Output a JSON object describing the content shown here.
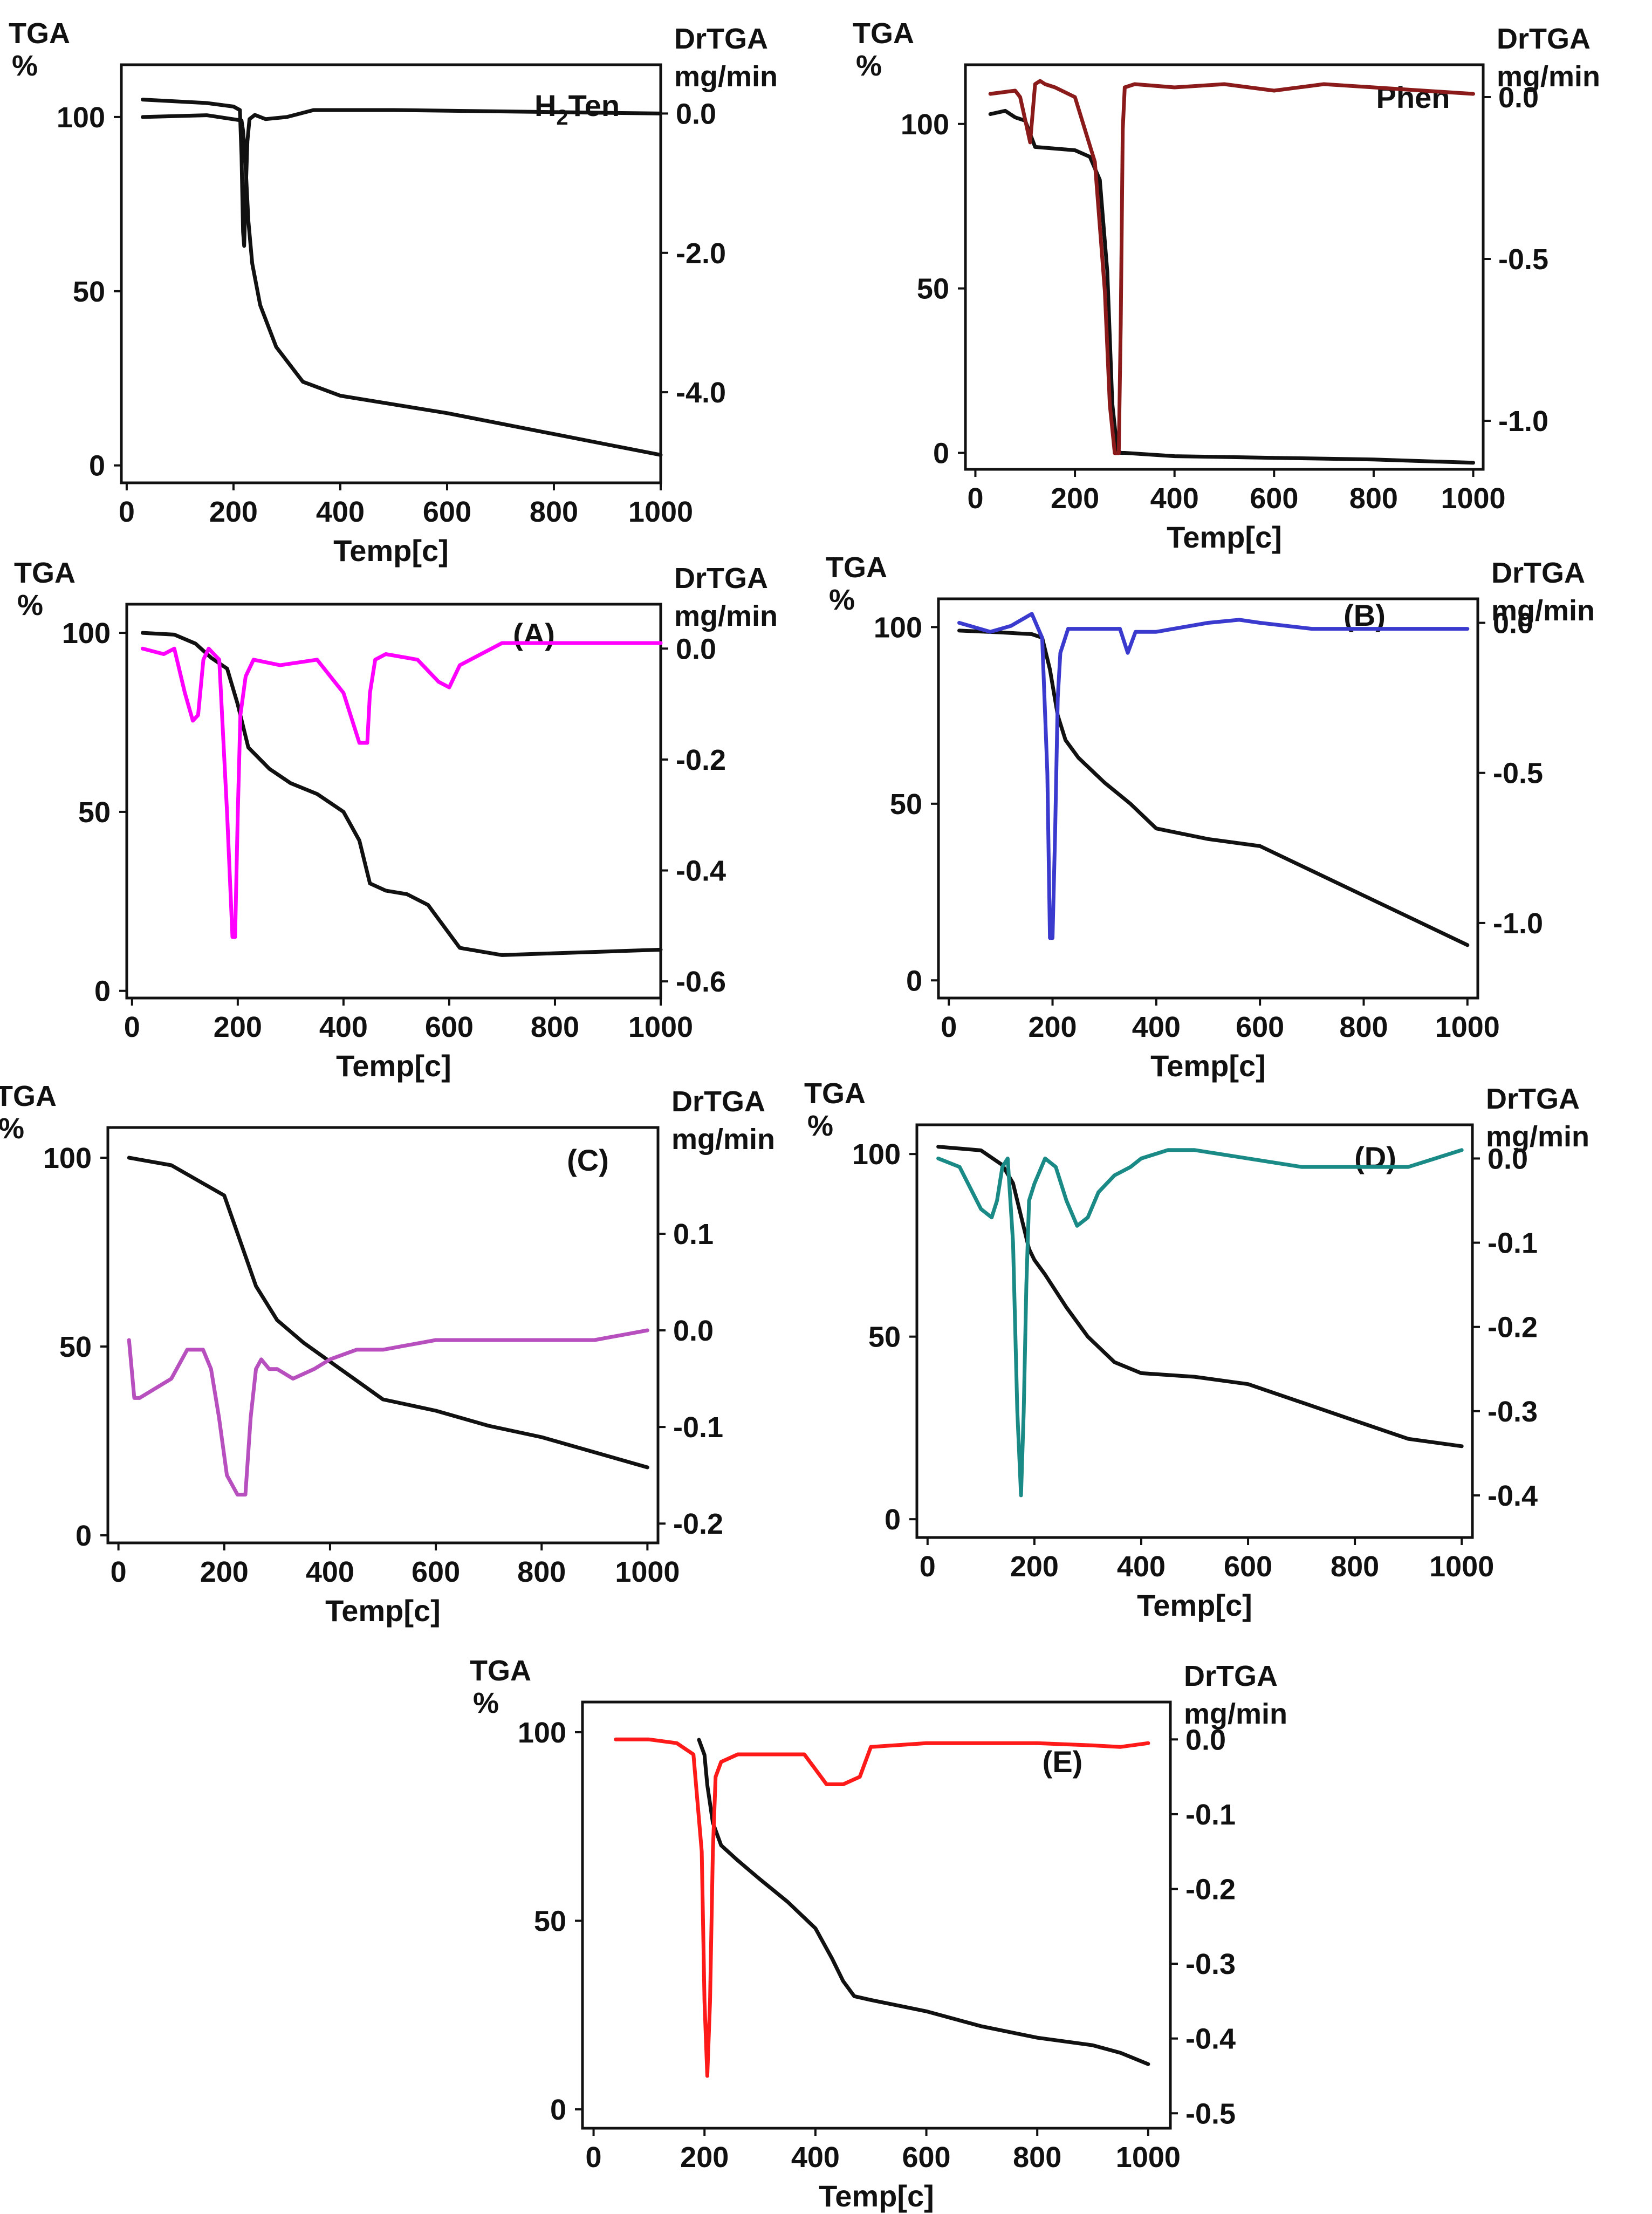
{
  "chart_data": [
    {
      "id": "h2ten",
      "type": "line",
      "panel_label": "H",
      "panel_label_sub": "2",
      "panel_label_tail": "Ten",
      "xlabel": "Temp[c]",
      "ylabel": [
        "TGA",
        "%"
      ],
      "y2label": [
        "DrTGA",
        "mg/min"
      ],
      "xlim": [
        -10,
        1000
      ],
      "ylim": [
        -5,
        115
      ],
      "y2lim": [
        -5.3,
        0.7
      ],
      "x_ticks": [
        "0",
        "200",
        "400",
        "600",
        "800",
        "1000"
      ],
      "x_tick_values": [
        0,
        200,
        400,
        600,
        800,
        1000
      ],
      "y_ticks": [
        "0",
        "50",
        "100"
      ],
      "y_tick_values": [
        0,
        50,
        100
      ],
      "y2_ticks": [
        "0.0",
        "-2.0",
        "-4.0"
      ],
      "y2_tick_values": [
        0,
        -2,
        -4
      ],
      "series": [
        {
          "name": "TGA",
          "axis": "left",
          "color": "#111111",
          "x": [
            30,
            150,
            215,
            218,
            222,
            228,
            235,
            250,
            280,
            330,
            400,
            500,
            600,
            700,
            800,
            900,
            1000
          ],
          "y": [
            100,
            100.5,
            99,
            96,
            88,
            70,
            58,
            46,
            34,
            24,
            20,
            17.5,
            15,
            12,
            9,
            6,
            3
          ]
        },
        {
          "name": "DrTGA",
          "axis": "right",
          "color": "#111111",
          "x": [
            30,
            150,
            200,
            212,
            215,
            218,
            220,
            223,
            226,
            230,
            240,
            260,
            300,
            350,
            500,
            700,
            1000
          ],
          "y": [
            0.2,
            0.15,
            0.1,
            0.05,
            -0.6,
            -1.7,
            -1.9,
            -1.1,
            -0.4,
            -0.08,
            -0.02,
            -0.08,
            -0.05,
            0.05,
            0.05,
            0.03,
            0.0
          ]
        }
      ]
    },
    {
      "id": "phen",
      "type": "line",
      "panel_label": "Phen",
      "xlabel": "Temp[c]",
      "ylabel": [
        "TGA",
        "%"
      ],
      "y2label": [
        "DrTGA",
        "mg/min"
      ],
      "xlim": [
        -20,
        1020
      ],
      "ylim": [
        -5,
        118
      ],
      "y2lim": [
        -1.15,
        0.1
      ],
      "x_ticks": [
        "0",
        "200",
        "400",
        "600",
        "800",
        "1000"
      ],
      "x_tick_values": [
        0,
        200,
        400,
        600,
        800,
        1000
      ],
      "y_ticks": [
        "0",
        "50",
        "100"
      ],
      "y_tick_values": [
        0,
        50,
        100
      ],
      "y2_ticks": [
        "0.0",
        "-0.5",
        "-1.0"
      ],
      "y2_tick_values": [
        0,
        -0.5,
        -1.0
      ],
      "series": [
        {
          "name": "TGA",
          "axis": "left",
          "color": "#111111",
          "x": [
            30,
            60,
            80,
            100,
            120,
            200,
            230,
            250,
            265,
            275,
            285,
            292,
            300,
            400,
            600,
            800,
            1000
          ],
          "y": [
            103,
            104,
            102,
            101,
            93,
            92,
            90,
            83,
            55,
            15,
            1,
            0,
            0,
            -1,
            -1.5,
            -2,
            -3
          ]
        },
        {
          "name": "DrTGA",
          "axis": "right",
          "color": "#8b1a1a",
          "x": [
            30,
            80,
            90,
            100,
            110,
            115,
            120,
            130,
            140,
            160,
            200,
            240,
            260,
            270,
            280,
            288,
            292,
            296,
            300,
            320,
            400,
            500,
            600,
            700,
            800,
            900,
            1000
          ],
          "y": [
            0.01,
            0.02,
            0.0,
            -0.07,
            -0.14,
            -0.05,
            0.04,
            0.05,
            0.04,
            0.03,
            0.0,
            -0.2,
            -0.6,
            -0.95,
            -1.1,
            -1.1,
            -0.7,
            -0.1,
            0.03,
            0.04,
            0.03,
            0.04,
            0.02,
            0.04,
            0.03,
            0.02,
            0.01
          ]
        }
      ]
    },
    {
      "id": "A",
      "type": "line",
      "panel_label": "(A)",
      "xlabel": "Temp[c]",
      "ylabel": [
        "TGA",
        "%"
      ],
      "y2label": [
        "DrTGA",
        "mg/min"
      ],
      "xlim": [
        -10,
        1000
      ],
      "ylim": [
        -2,
        108
      ],
      "y2lim": [
        -0.63,
        0.08
      ],
      "x_ticks": [
        "0",
        "200",
        "400",
        "600",
        "800",
        "1000"
      ],
      "x_tick_values": [
        0,
        200,
        400,
        600,
        800,
        1000
      ],
      "y_ticks": [
        "0",
        "50",
        "100"
      ],
      "y_tick_values": [
        0,
        50,
        100
      ],
      "y2_ticks": [
        "0.0",
        "-0.2",
        "-0.4",
        "-0.6"
      ],
      "y2_tick_values": [
        0,
        -0.2,
        -0.4,
        -0.6
      ],
      "series": [
        {
          "name": "TGA",
          "axis": "left",
          "color": "#111111",
          "x": [
            20,
            80,
            120,
            150,
            180,
            200,
            220,
            260,
            300,
            350,
            400,
            430,
            450,
            480,
            520,
            560,
            590,
            620,
            700,
            800,
            900,
            1000
          ],
          "y": [
            100,
            99.5,
            97,
            93,
            90,
            80,
            68,
            62,
            58,
            55,
            50,
            42,
            30,
            28,
            27,
            24,
            18,
            12,
            10,
            10.5,
            11,
            11.5
          ]
        },
        {
          "name": "DrTGA",
          "axis": "right",
          "color": "#ff00ff",
          "x": [
            20,
            60,
            80,
            100,
            115,
            125,
            135,
            145,
            165,
            180,
            190,
            195,
            200,
            205,
            215,
            230,
            280,
            350,
            400,
            430,
            445,
            450,
            460,
            480,
            540,
            580,
            600,
            620,
            700,
            800,
            900,
            1000
          ],
          "y": [
            0.0,
            -0.01,
            0.0,
            -0.08,
            -0.13,
            -0.12,
            -0.02,
            0.0,
            -0.02,
            -0.3,
            -0.52,
            -0.52,
            -0.3,
            -0.12,
            -0.05,
            -0.02,
            -0.03,
            -0.02,
            -0.08,
            -0.17,
            -0.17,
            -0.08,
            -0.02,
            -0.01,
            -0.02,
            -0.06,
            -0.07,
            -0.03,
            0.01,
            0.01,
            0.01,
            0.01
          ]
        }
      ]
    },
    {
      "id": "B",
      "type": "line",
      "panel_label": "(B)",
      "xlabel": "Temp[c]",
      "ylabel": [
        "TGA",
        "%"
      ],
      "y2label": [
        "DrTGA",
        "mg/min"
      ],
      "xlim": [
        -20,
        1020
      ],
      "ylim": [
        -5,
        108
      ],
      "y2lim": [
        -1.25,
        0.08
      ],
      "x_ticks": [
        "0",
        "200",
        "400",
        "600",
        "800",
        "1000"
      ],
      "x_tick_values": [
        0,
        200,
        400,
        600,
        800,
        1000
      ],
      "y_ticks": [
        "0",
        "50",
        "100"
      ],
      "y_tick_values": [
        0,
        50,
        100
      ],
      "y2_ticks": [
        "0.0",
        "-0.5",
        "-1.0"
      ],
      "y2_tick_values": [
        0,
        -0.5,
        -1.0
      ],
      "series": [
        {
          "name": "TGA",
          "axis": "left",
          "color": "#111111",
          "x": [
            20,
            100,
            160,
            180,
            195,
            210,
            225,
            250,
            300,
            350,
            400,
            500,
            600,
            700,
            800,
            900,
            1000
          ],
          "y": [
            99,
            98.5,
            98,
            97,
            88,
            75,
            68,
            63,
            56,
            50,
            43,
            40,
            38,
            31,
            24,
            17,
            10
          ]
        },
        {
          "name": "DrTGA",
          "axis": "right",
          "color": "#3a3acf",
          "x": [
            20,
            80,
            120,
            160,
            180,
            190,
            195,
            200,
            205,
            210,
            215,
            230,
            270,
            330,
            345,
            360,
            400,
            500,
            560,
            600,
            700,
            800,
            900,
            1000
          ],
          "y": [
            0.0,
            -0.03,
            -0.01,
            0.03,
            -0.05,
            -0.5,
            -1.05,
            -1.05,
            -0.7,
            -0.25,
            -0.1,
            -0.02,
            -0.02,
            -0.02,
            -0.1,
            -0.03,
            -0.03,
            0.0,
            0.01,
            0.0,
            -0.02,
            -0.02,
            -0.02,
            -0.02
          ]
        }
      ]
    },
    {
      "id": "C",
      "type": "line",
      "panel_label": "(C)",
      "xlabel": "Temp[c]",
      "ylabel": [
        "TGA",
        "%"
      ],
      "y2label": [
        "DrTGA",
        "mg/min"
      ],
      "xlim": [
        -20,
        1020
      ],
      "ylim": [
        -2,
        108
      ],
      "y2lim": [
        -0.22,
        0.21
      ],
      "x_ticks": [
        "0",
        "200",
        "400",
        "600",
        "800",
        "1000"
      ],
      "x_tick_values": [
        0,
        200,
        400,
        600,
        800,
        1000
      ],
      "y_ticks": [
        "0",
        "50",
        "100"
      ],
      "y_tick_values": [
        0,
        50,
        100
      ],
      "y2_ticks": [
        "0.1",
        "0.0",
        "-0.1",
        "-0.2"
      ],
      "y2_tick_values": [
        0.1,
        0.0,
        -0.1,
        -0.2
      ],
      "series": [
        {
          "name": "TGA",
          "axis": "left",
          "color": "#111111",
          "x": [
            20,
            100,
            150,
            200,
            230,
            260,
            300,
            350,
            400,
            450,
            500,
            600,
            700,
            800,
            900,
            1000
          ],
          "y": [
            100,
            98,
            94,
            90,
            78,
            66,
            57,
            51,
            46,
            41,
            36,
            33,
            29,
            26,
            22,
            18
          ]
        },
        {
          "name": "DrTGA",
          "axis": "right",
          "color": "#b74fbf",
          "x": [
            20,
            30,
            40,
            70,
            100,
            130,
            160,
            175,
            190,
            205,
            215,
            225,
            240,
            250,
            260,
            270,
            285,
            300,
            330,
            370,
            400,
            450,
            500,
            600,
            700,
            800,
            900,
            1000
          ],
          "y": [
            -0.01,
            -0.07,
            -0.07,
            -0.06,
            -0.05,
            -0.02,
            -0.02,
            -0.04,
            -0.09,
            -0.15,
            -0.16,
            -0.17,
            -0.17,
            -0.09,
            -0.04,
            -0.03,
            -0.04,
            -0.04,
            -0.05,
            -0.04,
            -0.03,
            -0.02,
            -0.02,
            -0.01,
            -0.01,
            -0.01,
            -0.01,
            0.0
          ]
        }
      ]
    },
    {
      "id": "D",
      "type": "line",
      "panel_label": "(D)",
      "xlabel": "Temp[c]",
      "ylabel": [
        "TGA",
        "%"
      ],
      "y2label": [
        "DrTGA",
        "mg/min"
      ],
      "xlim": [
        -20,
        1020
      ],
      "ylim": [
        -5,
        108
      ],
      "y2lim": [
        -0.45,
        0.04
      ],
      "x_ticks": [
        "0",
        "200",
        "400",
        "600",
        "800",
        "1000"
      ],
      "x_tick_values": [
        0,
        200,
        400,
        600,
        800,
        1000
      ],
      "y_ticks": [
        "0",
        "50",
        "100"
      ],
      "y_tick_values": [
        0,
        50,
        100
      ],
      "y2_ticks": [
        "0.0",
        "-0.1",
        "-0.2",
        "-0.3",
        "-0.4"
      ],
      "y2_tick_values": [
        0,
        -0.1,
        -0.2,
        -0.3,
        -0.4
      ],
      "series": [
        {
          "name": "TGA",
          "axis": "left",
          "color": "#111111",
          "x": [
            20,
            100,
            140,
            160,
            175,
            190,
            200,
            220,
            260,
            300,
            350,
            400,
            450,
            500,
            600,
            700,
            800,
            900,
            1000
          ],
          "y": [
            102,
            101,
            97,
            92,
            83,
            74,
            71,
            67,
            58,
            50,
            43,
            40,
            39.5,
            39,
            37,
            32,
            27,
            22,
            20
          ]
        },
        {
          "name": "DrTGA",
          "axis": "right",
          "color": "#1a8a86",
          "x": [
            20,
            60,
            100,
            120,
            130,
            140,
            150,
            160,
            168,
            175,
            180,
            185,
            190,
            200,
            220,
            240,
            260,
            280,
            300,
            320,
            350,
            380,
            400,
            450,
            500,
            600,
            700,
            800,
            900,
            1000
          ],
          "y": [
            0.0,
            -0.01,
            -0.06,
            -0.07,
            -0.05,
            -0.01,
            0.0,
            -0.1,
            -0.3,
            -0.4,
            -0.3,
            -0.15,
            -0.05,
            -0.03,
            0.0,
            -0.01,
            -0.05,
            -0.08,
            -0.07,
            -0.04,
            -0.02,
            -0.01,
            0.0,
            0.01,
            0.01,
            0.0,
            -0.01,
            -0.01,
            -0.01,
            0.01
          ]
        }
      ]
    },
    {
      "id": "E",
      "type": "line",
      "panel_label": "(E)",
      "xlabel": "Temp[c]",
      "ylabel": [
        "TGA",
        "%"
      ],
      "y2label": [
        "DrTGA",
        "mg/min"
      ],
      "xlim": [
        -20,
        1040
      ],
      "ylim": [
        -5,
        108
      ],
      "y2lim": [
        -0.52,
        0.05
      ],
      "x_ticks": [
        "0",
        "200",
        "400",
        "600",
        "800",
        "1000"
      ],
      "x_tick_values": [
        0,
        200,
        400,
        600,
        800,
        1000
      ],
      "y_ticks": [
        "0",
        "50",
        "100"
      ],
      "y_tick_values": [
        0,
        50,
        100
      ],
      "y2_ticks": [
        "0.0",
        "-0.1",
        "-0.2",
        "-0.3",
        "-0.4",
        "-0.5"
      ],
      "y2_tick_values": [
        0,
        -0.1,
        -0.2,
        -0.3,
        -0.4,
        -0.5
      ],
      "series": [
        {
          "name": "TGA",
          "axis": "left",
          "color": "#111111",
          "x": [
            190,
            200,
            205,
            215,
            230,
            260,
            300,
            350,
            400,
            430,
            450,
            470,
            500,
            600,
            700,
            800,
            900,
            950,
            1000
          ],
          "y": [
            98,
            94,
            86,
            76,
            70,
            66,
            61,
            55,
            48,
            40,
            34,
            30,
            29,
            26,
            22,
            19,
            17,
            15,
            12
          ]
        },
        {
          "name": "DrTGA",
          "axis": "right",
          "color": "#ff1a1a",
          "x": [
            40,
            100,
            150,
            180,
            195,
            200,
            205,
            210,
            215,
            220,
            230,
            260,
            300,
            350,
            380,
            400,
            420,
            450,
            480,
            500,
            600,
            700,
            800,
            900,
            950,
            1000
          ],
          "y": [
            0.0,
            0.0,
            -0.005,
            -0.02,
            -0.15,
            -0.35,
            -0.45,
            -0.35,
            -0.15,
            -0.05,
            -0.03,
            -0.02,
            -0.02,
            -0.02,
            -0.02,
            -0.04,
            -0.06,
            -0.06,
            -0.05,
            -0.01,
            -0.005,
            -0.005,
            -0.005,
            -0.008,
            -0.01,
            -0.005
          ]
        }
      ]
    }
  ]
}
